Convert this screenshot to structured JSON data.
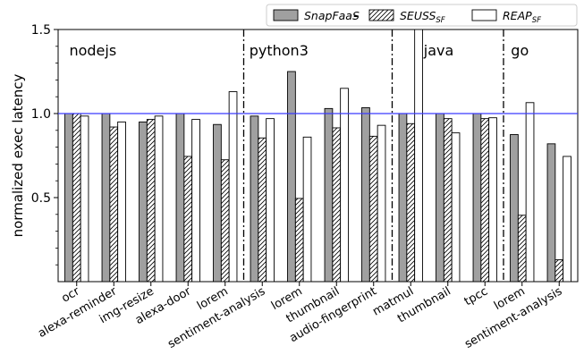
{
  "chart_data": {
    "type": "bar",
    "title": "",
    "ylabel": "normalized exec latency",
    "xlabel": "",
    "ylim": [
      0,
      1.5
    ],
    "yticks": [
      0.5,
      1.0,
      1.5
    ],
    "ytick_labels": [
      "0.5",
      "1.0",
      "1.5"
    ],
    "reference_line": {
      "y": 1.0,
      "color": "#3b3bff"
    },
    "categories": [
      "ocr",
      "alexa-reminder",
      "img-resize",
      "alexa-door",
      "lorem",
      "sentiment-analysis",
      "lorem",
      "thumbnail",
      "audio-fingerprint",
      "matmul",
      "thumbnail",
      "tpcc",
      "lorem",
      "sentiment-analysis"
    ],
    "groups": [
      {
        "label": "nodejs",
        "start": 0,
        "end": 4
      },
      {
        "label": "python3",
        "start": 5,
        "end": 8
      },
      {
        "label": "java",
        "start": 9,
        "end": 11
      },
      {
        "label": "go",
        "start": 12,
        "end": 13
      }
    ],
    "series": [
      {
        "name": "SnapFaaS",
        "legend_label": "SnapFaaS",
        "style": "gray",
        "color": "#a0a0a0",
        "values": [
          1.0,
          1.0,
          0.95,
          1.0,
          0.935,
          0.985,
          1.25,
          1.03,
          1.035,
          1.0,
          1.0,
          1.0,
          0.875,
          0.82
        ]
      },
      {
        "name": "SEUSS_SF",
        "legend_label": "SEUSS",
        "legend_sub": "SF",
        "style": "hatch",
        "color": "#ffffff",
        "values": [
          1.0,
          0.92,
          0.965,
          0.745,
          0.725,
          0.855,
          0.495,
          0.915,
          0.865,
          0.94,
          0.97,
          0.97,
          0.395,
          0.13
        ]
      },
      {
        "name": "REAP_SF",
        "legend_label": "REAP",
        "legend_sub": "SF",
        "style": "white",
        "color": "#ffffff",
        "values": [
          0.985,
          0.95,
          0.985,
          0.965,
          1.13,
          0.97,
          0.86,
          1.15,
          0.93,
          1.5,
          0.885,
          0.975,
          1.065,
          0.745
        ]
      }
    ],
    "legend_position": "top-right",
    "legend_dash": "–",
    "grid": false
  }
}
